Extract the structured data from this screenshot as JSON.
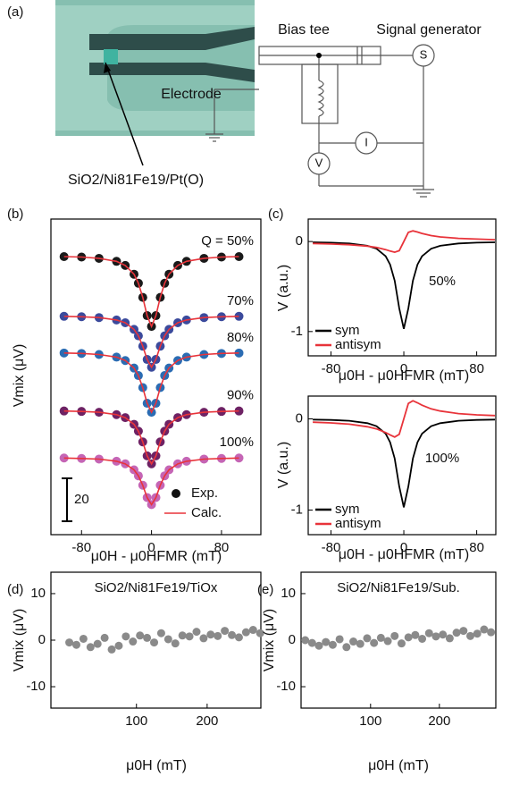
{
  "diagram": {
    "panel_label": "(a)",
    "bias_tee": "Bias tee",
    "signal_generator": "Signal generator",
    "electrode": "Electrode",
    "sample": "SiO2/Ni81Fe19/Pt(O)",
    "source": "S",
    "ammeter": "I",
    "voltmeter": "V"
  },
  "chart_data": [
    {
      "type": "line",
      "panel_label": "(b)",
      "xlabel": "μ0H - μ0HFMR (mT)",
      "ylabel": "Vmix (μV)",
      "xlim": [
        -115,
        125
      ],
      "xticks": [
        -80,
        0,
        80
      ],
      "ylim": [
        0,
        147
      ],
      "scale_bar": 20,
      "legend": {
        "exp": {
          "name": "Exp.",
          "color": "#111111"
        },
        "calc": {
          "name": "Calc.",
          "color": "#e8333a"
        }
      },
      "x": [
        -100,
        -80,
        -60,
        -40,
        -30,
        -20,
        -15,
        -10,
        -5,
        0,
        5,
        10,
        15,
        20,
        30,
        40,
        60,
        80,
        100
      ],
      "series": [
        {
          "name": "Q = 50%",
          "color": "#1a1a1a",
          "values": [
            129.5,
            129.3,
            128.7,
            127.3,
            125.4,
            121.3,
            117.1,
            110.5,
            102,
            97,
            102,
            110.5,
            117.1,
            121.3,
            125.4,
            127.3,
            128.7,
            129.3,
            129.5
          ],
          "calc": [
            129.5,
            129.3,
            128.7,
            127.3,
            125.4,
            121.3,
            117.1,
            110.5,
            102,
            97,
            102,
            110.5,
            117.1,
            121.3,
            125.4,
            127.3,
            128.7,
            129.3,
            129.5
          ]
        },
        {
          "name": "70%",
          "color": "#3b4a9c",
          "values": [
            101.7,
            101.5,
            101.1,
            100,
            98.7,
            95.6,
            92.6,
            87.8,
            81.6,
            78,
            81.6,
            87.8,
            92.6,
            95.6,
            98.7,
            100,
            101.1,
            101.5,
            101.7
          ],
          "calc": [
            101.7,
            101.5,
            101.1,
            100,
            98.7,
            95.6,
            92.6,
            87.8,
            81.6,
            78,
            81.6,
            87.8,
            92.6,
            95.6,
            98.7,
            100,
            101.1,
            101.5,
            101.7
          ]
        },
        {
          "name": "80%",
          "color": "#2b6cb3",
          "values": [
            84.6,
            84.4,
            83.9,
            82.7,
            81.1,
            77.6,
            74.1,
            68.5,
            61.2,
            57,
            61.2,
            68.5,
            74.1,
            77.6,
            81.1,
            82.7,
            83.9,
            84.4,
            84.6
          ],
          "calc": [
            84.6,
            84.4,
            83.9,
            82.7,
            81.1,
            77.6,
            74.1,
            68.5,
            61.2,
            57,
            61.2,
            68.5,
            74.1,
            77.6,
            81.1,
            82.7,
            83.9,
            84.4,
            84.6
          ]
        },
        {
          "name": "90%",
          "color": "#6e2264",
          "values": [
            57.6,
            57.4,
            57,
            55.9,
            54.5,
            51.4,
            48.2,
            43.2,
            36.7,
            33,
            36.7,
            43.2,
            48.2,
            51.4,
            54.5,
            55.9,
            57,
            57.4,
            57.6
          ],
          "calc": [
            57.6,
            57.4,
            57,
            55.9,
            54.5,
            51.4,
            48.2,
            43.2,
            36.7,
            33,
            36.7,
            43.2,
            48.2,
            51.4,
            54.5,
            55.9,
            57,
            57.4,
            57.6
          ]
        },
        {
          "name": "100%",
          "color": "#c565b5",
          "values": [
            35.7,
            35.5,
            35.2,
            34.2,
            33,
            30.2,
            27.4,
            23,
            17.3,
            14,
            17.3,
            23,
            27.4,
            30.2,
            33,
            34.2,
            35.2,
            35.5,
            35.7
          ],
          "calc": [
            35.7,
            35.5,
            35.2,
            34.2,
            33,
            30.2,
            27.4,
            23,
            17.3,
            14,
            17.3,
            23,
            27.4,
            30.2,
            33,
            34.2,
            35.2,
            35.5,
            35.7
          ]
        }
      ]
    },
    {
      "type": "line",
      "panel_label": "(c)",
      "annotation": "50%",
      "xlabel": "μ0H - μ0HFMR (mT)",
      "ylabel": "V (a.u.)",
      "xlim": [
        -105,
        101
      ],
      "xticks": [
        -80,
        0,
        80
      ],
      "ylim": [
        -1.27,
        0.25
      ],
      "yticks": [
        -1,
        0
      ],
      "x": [
        -100,
        -80,
        -60,
        -40,
        -30,
        -20,
        -15,
        -10,
        -5,
        0,
        5,
        10,
        15,
        20,
        30,
        40,
        60,
        80,
        100
      ],
      "series": [
        {
          "name": "sym",
          "color": "#000000",
          "values": [
            -0.008,
            -0.012,
            -0.021,
            -0.047,
            -0.08,
            -0.163,
            -0.257,
            -0.434,
            -0.741,
            -0.97,
            -0.741,
            -0.434,
            -0.257,
            -0.163,
            -0.08,
            -0.047,
            -0.021,
            -0.012,
            -0.008
          ]
        },
        {
          "name": "antisym",
          "color": "#e8333a",
          "values": [
            -0.021,
            -0.027,
            -0.035,
            -0.051,
            -0.066,
            -0.09,
            -0.106,
            -0.119,
            -0.102,
            0,
            0.102,
            0.119,
            0.106,
            0.09,
            0.066,
            0.051,
            0.035,
            0.027,
            0.021
          ]
        }
      ]
    },
    {
      "type": "line",
      "annotation": "100%",
      "xlabel": "μ0H - μ0HFMR (mT)",
      "ylabel": "V (a.u.)",
      "xlim": [
        -105,
        101
      ],
      "xticks": [
        -80,
        0,
        80
      ],
      "ylim": [
        -1.27,
        0.25
      ],
      "yticks": [
        -1,
        0
      ],
      "x": [
        -100,
        -80,
        -60,
        -40,
        -30,
        -20,
        -15,
        -10,
        -5,
        0,
        5,
        10,
        15,
        20,
        30,
        40,
        60,
        80,
        100
      ],
      "series": [
        {
          "name": "sym",
          "color": "#000000",
          "values": [
            -0.008,
            -0.012,
            -0.021,
            -0.047,
            -0.08,
            -0.163,
            -0.257,
            -0.434,
            -0.741,
            -0.97,
            -0.741,
            -0.434,
            -0.257,
            -0.163,
            -0.08,
            -0.047,
            -0.021,
            -0.012,
            -0.008
          ]
        },
        {
          "name": "antisym",
          "color": "#e8333a",
          "values": [
            -0.036,
            -0.044,
            -0.058,
            -0.086,
            -0.11,
            -0.15,
            -0.176,
            -0.199,
            -0.17,
            0,
            0.17,
            0.199,
            0.176,
            0.15,
            0.11,
            0.086,
            0.058,
            0.044,
            0.036
          ]
        }
      ]
    },
    {
      "type": "scatter",
      "panel_label": "(d)",
      "title": "SiO2/Ni81Fe19/TiOx",
      "xlabel": "μ0H  (mT)",
      "ylabel": "Vmix (μV)",
      "xlim": [
        -21,
        276
      ],
      "xticks": [
        100,
        200
      ],
      "ylim": [
        -14.6,
        14.6
      ],
      "yticks": [
        -10,
        0,
        10
      ],
      "x": [
        5,
        15,
        25,
        35,
        45,
        55,
        65,
        75,
        85,
        95,
        105,
        115,
        125,
        135,
        145,
        155,
        165,
        175,
        185,
        195,
        205,
        215,
        225,
        235,
        245,
        255,
        265,
        275
      ],
      "series": [
        {
          "color": "#8a8a8a",
          "values": [
            -0.5,
            -1,
            0.3,
            -1.5,
            -0.8,
            0.5,
            -2,
            -1.2,
            0.8,
            -0.3,
            1,
            0.5,
            -0.5,
            1.5,
            0.2,
            -0.7,
            1,
            0.8,
            1.8,
            0.4,
            1.2,
            0.9,
            2,
            1.1,
            0.6,
            1.7,
            2.2,
            1.5
          ]
        }
      ]
    },
    {
      "type": "scatter",
      "panel_label": "(e)",
      "title": "SiO2/Ni81Fe19/Sub.",
      "xlabel": "μ0H  (mT)",
      "ylabel": "Vmix (μV)",
      "xlim": [
        -1,
        282
      ],
      "xticks": [
        100,
        200
      ],
      "ylim": [
        -14.6,
        14.6
      ],
      "yticks": [
        -10,
        0,
        10
      ],
      "x": [
        5,
        15,
        25,
        35,
        45,
        55,
        65,
        75,
        85,
        95,
        105,
        115,
        125,
        135,
        145,
        155,
        165,
        175,
        185,
        195,
        205,
        215,
        225,
        235,
        245,
        255,
        265,
        275
      ],
      "series": [
        {
          "color": "#8a8a8a",
          "values": [
            0,
            -0.6,
            -1.2,
            -0.4,
            -1,
            0.2,
            -1.5,
            -0.3,
            -0.8,
            0.4,
            -0.6,
            0.5,
            -0.2,
            0.9,
            -0.7,
            0.6,
            1.1,
            0.3,
            1.5,
            0.8,
            1.2,
            0.4,
            1.6,
            2,
            0.9,
            1.4,
            2.3,
            1.7
          ]
        }
      ]
    }
  ]
}
